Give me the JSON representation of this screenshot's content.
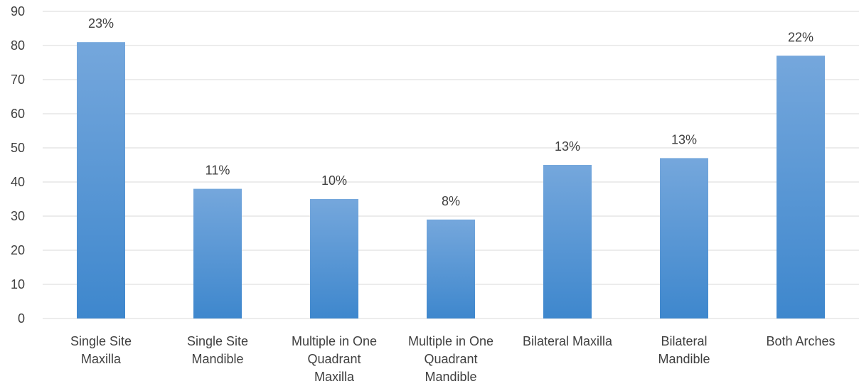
{
  "chart_data": {
    "type": "bar",
    "categories": [
      [
        "Single Site",
        "Maxilla"
      ],
      [
        "Single Site",
        "Mandible"
      ],
      [
        "Multiple in One",
        "Quadrant",
        "Maxilla"
      ],
      [
        "Multiple in One",
        "Quadrant",
        "Mandible"
      ],
      [
        "Bilateral Maxilla"
      ],
      [
        "Bilateral",
        "Mandible"
      ],
      [
        "Both Arches"
      ]
    ],
    "values": [
      81,
      38,
      35,
      29,
      45,
      47,
      77
    ],
    "data_labels": [
      "23%",
      "11%",
      "10%",
      "8%",
      "13%",
      "13%",
      "22%"
    ],
    "yticks": [
      "0",
      "10",
      "20",
      "30",
      "40",
      "50",
      "60",
      "70",
      "80",
      "90"
    ],
    "ylim": [
      0,
      90
    ],
    "title": "",
    "xlabel": "",
    "ylabel": "",
    "grid": true,
    "legend": "none",
    "colors": {
      "bar_top": "#75A7DC",
      "bar_bottom": "#3E87CD",
      "grid": "#D9D9D9",
      "text": "#404040"
    }
  }
}
